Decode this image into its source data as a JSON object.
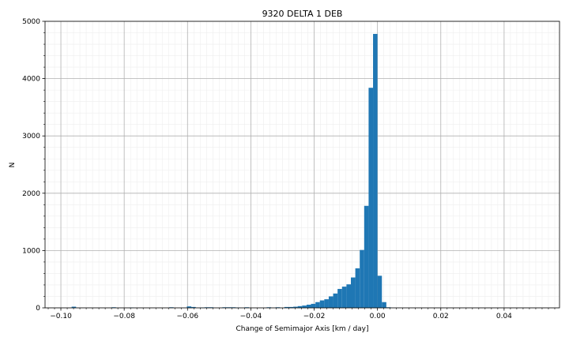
{
  "chart_data": {
    "type": "bar",
    "title": "9320 DELTA 1 DEB",
    "xlabel": "Change of Semimajor Axis [km / day]",
    "ylabel": "N",
    "xlim": [
      -0.105,
      0.0575
    ],
    "ylim": [
      0,
      5000
    ],
    "x_ticks": [
      -0.1,
      -0.08,
      -0.06,
      -0.04,
      -0.02,
      0.0,
      0.02,
      0.04
    ],
    "x_tick_labels": [
      "−0.10",
      "−0.08",
      "−0.06",
      "−0.04",
      "−0.02",
      "0.00",
      "0.02",
      "0.04"
    ],
    "y_ticks": [
      0,
      1000,
      2000,
      3000,
      4000,
      5000
    ],
    "y_tick_labels": [
      "0",
      "1000",
      "2000",
      "3000",
      "4000",
      "5000"
    ],
    "grid": true,
    "minor_grid": true,
    "bar_color": "#1f77b4",
    "bin_width": 0.0014,
    "bin_starts": [
      -0.0966,
      -0.084,
      -0.0784,
      -0.0658,
      -0.0602,
      -0.0588,
      -0.056,
      -0.0546,
      -0.0532,
      -0.049,
      -0.0476,
      -0.0462,
      -0.0448,
      -0.042,
      -0.035,
      -0.0322,
      -0.0294,
      -0.028,
      -0.0266,
      -0.0252,
      -0.0238,
      -0.0224,
      -0.021,
      -0.0196,
      -0.0182,
      -0.0168,
      -0.0154,
      -0.014,
      -0.0126,
      -0.0112,
      -0.0098,
      -0.0084,
      -0.007,
      -0.0056,
      -0.0042,
      -0.0028,
      -0.0014,
      0.0,
      0.0014,
      0.0028
    ],
    "counts": [
      20,
      10,
      5,
      10,
      25,
      15,
      5,
      10,
      10,
      10,
      10,
      10,
      5,
      10,
      10,
      10,
      15,
      15,
      20,
      30,
      40,
      55,
      70,
      100,
      130,
      150,
      200,
      250,
      330,
      370,
      410,
      530,
      690,
      1010,
      1780,
      3840,
      4780,
      560,
      100,
      10
    ]
  }
}
